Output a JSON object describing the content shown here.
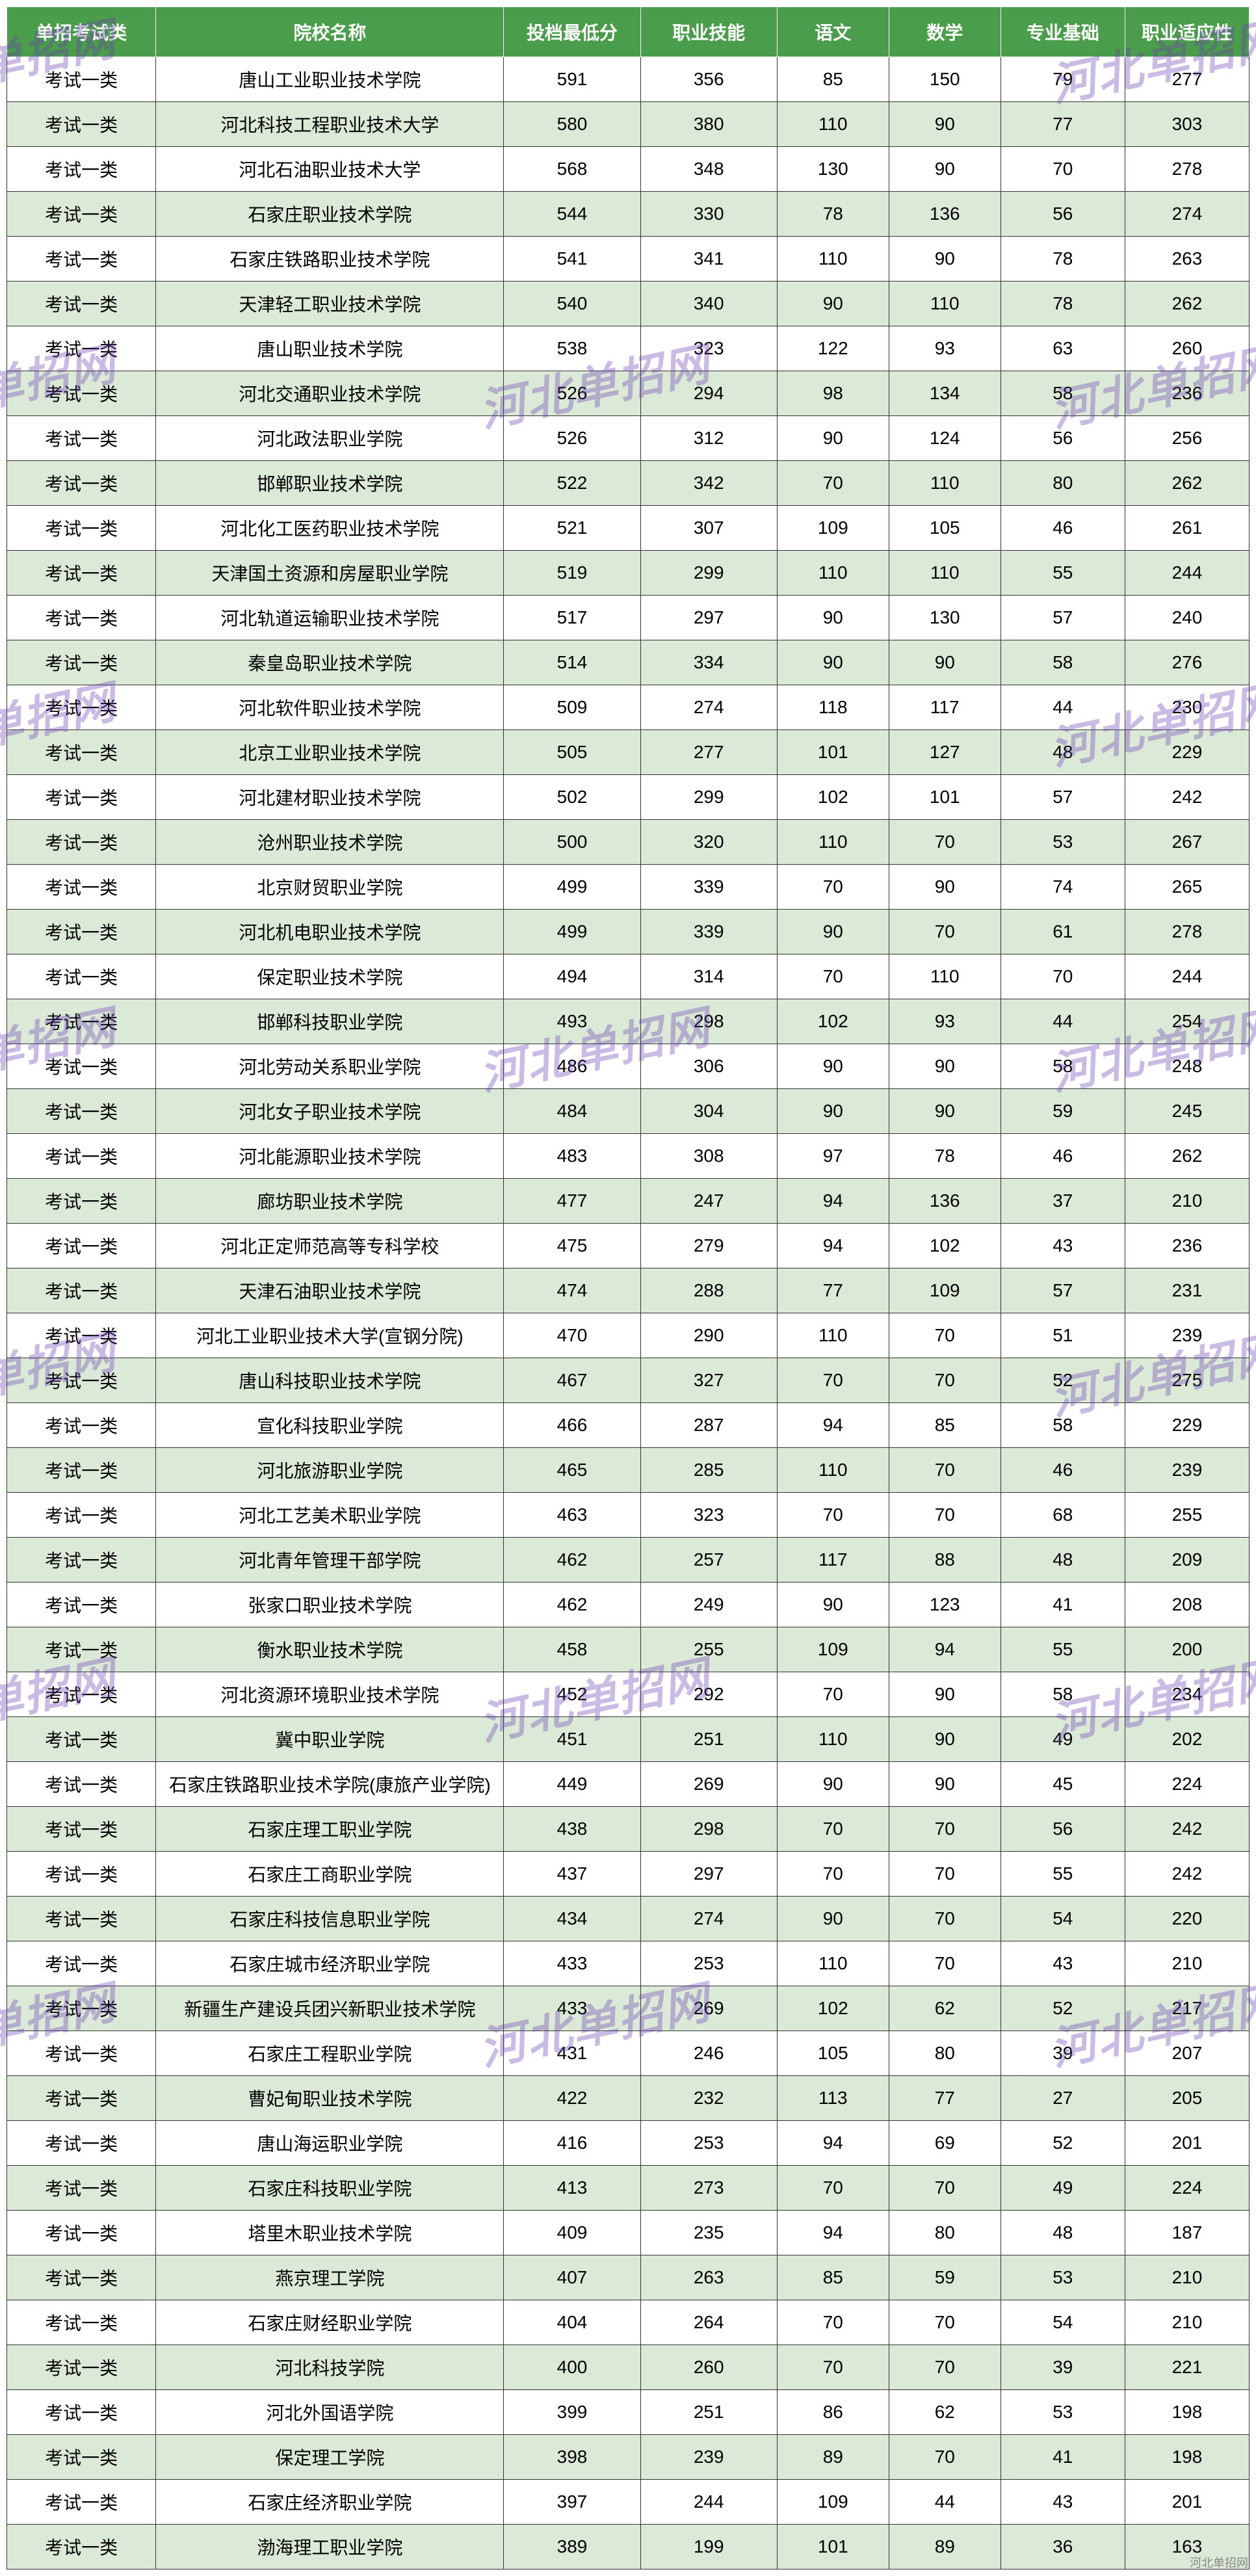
{
  "table": {
    "header_bg": "#4a9d4a",
    "header_fg": "#ffffff",
    "row_even_bg": "#dbead7",
    "row_odd_bg": "#ffffff",
    "border_color": "#333333",
    "columns": [
      "单招考试类",
      "院校名称",
      "投档最低分",
      "职业技能",
      "语文",
      "数学",
      "专业基础",
      "职业适应性"
    ],
    "rows": [
      [
        "考试一类",
        "唐山工业职业技术学院",
        "591",
        "356",
        "85",
        "150",
        "79",
        "277"
      ],
      [
        "考试一类",
        "河北科技工程职业技术大学",
        "580",
        "380",
        "110",
        "90",
        "77",
        "303"
      ],
      [
        "考试一类",
        "河北石油职业技术大学",
        "568",
        "348",
        "130",
        "90",
        "70",
        "278"
      ],
      [
        "考试一类",
        "石家庄职业技术学院",
        "544",
        "330",
        "78",
        "136",
        "56",
        "274"
      ],
      [
        "考试一类",
        "石家庄铁路职业技术学院",
        "541",
        "341",
        "110",
        "90",
        "78",
        "263"
      ],
      [
        "考试一类",
        "天津轻工职业技术学院",
        "540",
        "340",
        "90",
        "110",
        "78",
        "262"
      ],
      [
        "考试一类",
        "唐山职业技术学院",
        "538",
        "323",
        "122",
        "93",
        "63",
        "260"
      ],
      [
        "考试一类",
        "河北交通职业技术学院",
        "526",
        "294",
        "98",
        "134",
        "58",
        "236"
      ],
      [
        "考试一类",
        "河北政法职业学院",
        "526",
        "312",
        "90",
        "124",
        "56",
        "256"
      ],
      [
        "考试一类",
        "邯郸职业技术学院",
        "522",
        "342",
        "70",
        "110",
        "80",
        "262"
      ],
      [
        "考试一类",
        "河北化工医药职业技术学院",
        "521",
        "307",
        "109",
        "105",
        "46",
        "261"
      ],
      [
        "考试一类",
        "天津国土资源和房屋职业学院",
        "519",
        "299",
        "110",
        "110",
        "55",
        "244"
      ],
      [
        "考试一类",
        "河北轨道运输职业技术学院",
        "517",
        "297",
        "90",
        "130",
        "57",
        "240"
      ],
      [
        "考试一类",
        "秦皇岛职业技术学院",
        "514",
        "334",
        "90",
        "90",
        "58",
        "276"
      ],
      [
        "考试一类",
        "河北软件职业技术学院",
        "509",
        "274",
        "118",
        "117",
        "44",
        "230"
      ],
      [
        "考试一类",
        "北京工业职业技术学院",
        "505",
        "277",
        "101",
        "127",
        "48",
        "229"
      ],
      [
        "考试一类",
        "河北建材职业技术学院",
        "502",
        "299",
        "102",
        "101",
        "57",
        "242"
      ],
      [
        "考试一类",
        "沧州职业技术学院",
        "500",
        "320",
        "110",
        "70",
        "53",
        "267"
      ],
      [
        "考试一类",
        "北京财贸职业学院",
        "499",
        "339",
        "70",
        "90",
        "74",
        "265"
      ],
      [
        "考试一类",
        "河北机电职业技术学院",
        "499",
        "339",
        "90",
        "70",
        "61",
        "278"
      ],
      [
        "考试一类",
        "保定职业技术学院",
        "494",
        "314",
        "70",
        "110",
        "70",
        "244"
      ],
      [
        "考试一类",
        "邯郸科技职业学院",
        "493",
        "298",
        "102",
        "93",
        "44",
        "254"
      ],
      [
        "考试一类",
        "河北劳动关系职业学院",
        "486",
        "306",
        "90",
        "90",
        "58",
        "248"
      ],
      [
        "考试一类",
        "河北女子职业技术学院",
        "484",
        "304",
        "90",
        "90",
        "59",
        "245"
      ],
      [
        "考试一类",
        "河北能源职业技术学院",
        "483",
        "308",
        "97",
        "78",
        "46",
        "262"
      ],
      [
        "考试一类",
        "廊坊职业技术学院",
        "477",
        "247",
        "94",
        "136",
        "37",
        "210"
      ],
      [
        "考试一类",
        "河北正定师范高等专科学校",
        "475",
        "279",
        "94",
        "102",
        "43",
        "236"
      ],
      [
        "考试一类",
        "天津石油职业技术学院",
        "474",
        "288",
        "77",
        "109",
        "57",
        "231"
      ],
      [
        "考试一类",
        "河北工业职业技术大学(宣钢分院)",
        "470",
        "290",
        "110",
        "70",
        "51",
        "239"
      ],
      [
        "考试一类",
        "唐山科技职业技术学院",
        "467",
        "327",
        "70",
        "70",
        "52",
        "275"
      ],
      [
        "考试一类",
        "宣化科技职业学院",
        "466",
        "287",
        "94",
        "85",
        "58",
        "229"
      ],
      [
        "考试一类",
        "河北旅游职业学院",
        "465",
        "285",
        "110",
        "70",
        "46",
        "239"
      ],
      [
        "考试一类",
        "河北工艺美术职业学院",
        "463",
        "323",
        "70",
        "70",
        "68",
        "255"
      ],
      [
        "考试一类",
        "河北青年管理干部学院",
        "462",
        "257",
        "117",
        "88",
        "48",
        "209"
      ],
      [
        "考试一类",
        "张家口职业技术学院",
        "462",
        "249",
        "90",
        "123",
        "41",
        "208"
      ],
      [
        "考试一类",
        "衡水职业技术学院",
        "458",
        "255",
        "109",
        "94",
        "55",
        "200"
      ],
      [
        "考试一类",
        "河北资源环境职业技术学院",
        "452",
        "292",
        "70",
        "90",
        "58",
        "234"
      ],
      [
        "考试一类",
        "冀中职业学院",
        "451",
        "251",
        "110",
        "90",
        "49",
        "202"
      ],
      [
        "考试一类",
        "石家庄铁路职业技术学院(康旅产业学院)",
        "449",
        "269",
        "90",
        "90",
        "45",
        "224"
      ],
      [
        "考试一类",
        "石家庄理工职业学院",
        "438",
        "298",
        "70",
        "70",
        "56",
        "242"
      ],
      [
        "考试一类",
        "石家庄工商职业学院",
        "437",
        "297",
        "70",
        "70",
        "55",
        "242"
      ],
      [
        "考试一类",
        "石家庄科技信息职业学院",
        "434",
        "274",
        "90",
        "70",
        "54",
        "220"
      ],
      [
        "考试一类",
        "石家庄城市经济职业学院",
        "433",
        "253",
        "110",
        "70",
        "43",
        "210"
      ],
      [
        "考试一类",
        "新疆生产建设兵团兴新职业技术学院",
        "433",
        "269",
        "102",
        "62",
        "52",
        "217"
      ],
      [
        "考试一类",
        "石家庄工程职业学院",
        "431",
        "246",
        "105",
        "80",
        "39",
        "207"
      ],
      [
        "考试一类",
        "曹妃甸职业技术学院",
        "422",
        "232",
        "113",
        "77",
        "27",
        "205"
      ],
      [
        "考试一类",
        "唐山海运职业学院",
        "416",
        "253",
        "94",
        "69",
        "52",
        "201"
      ],
      [
        "考试一类",
        "石家庄科技职业学院",
        "413",
        "273",
        "70",
        "70",
        "49",
        "224"
      ],
      [
        "考试一类",
        "塔里木职业技术学院",
        "409",
        "235",
        "94",
        "80",
        "48",
        "187"
      ],
      [
        "考试一类",
        "燕京理工学院",
        "407",
        "263",
        "85",
        "59",
        "53",
        "210"
      ],
      [
        "考试一类",
        "石家庄财经职业学院",
        "404",
        "264",
        "70",
        "70",
        "54",
        "210"
      ],
      [
        "考试一类",
        "河北科技学院",
        "400",
        "260",
        "70",
        "70",
        "39",
        "221"
      ],
      [
        "考试一类",
        "河北外国语学院",
        "399",
        "251",
        "86",
        "62",
        "53",
        "198"
      ],
      [
        "考试一类",
        "保定理工学院",
        "398",
        "239",
        "89",
        "70",
        "41",
        "198"
      ],
      [
        "考试一类",
        "石家庄经济职业学院",
        "397",
        "244",
        "109",
        "44",
        "43",
        "201"
      ],
      [
        "考试一类",
        "渤海理工职业学院",
        "389",
        "199",
        "101",
        "89",
        "36",
        "163"
      ]
    ]
  },
  "watermark_text": "河北单招网",
  "footer_mark": "河北单招网"
}
